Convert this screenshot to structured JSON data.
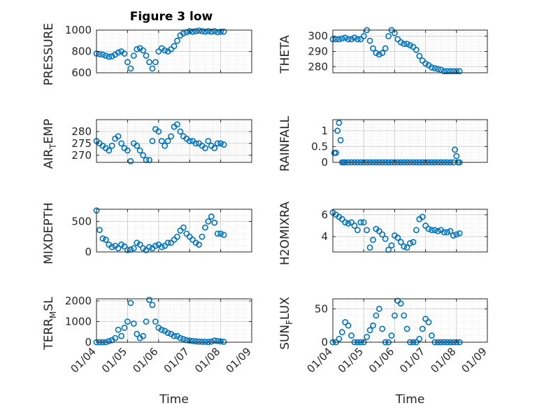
{
  "figure": {
    "title": "Figure 3 low"
  },
  "chart_data": [
    {
      "type": "scatter",
      "title": "Figure 3 low",
      "ylabel": "PRESSURE",
      "xlabel": "",
      "ylim": [
        600,
        1000
      ],
      "yticks": [
        "600",
        "800",
        "1000"
      ],
      "xlim": [
        "01/04",
        "01/09"
      ],
      "xticks": [],
      "grid": true,
      "color": "#0072BD",
      "series": [
        {
          "x": [
            4.0,
            4.1,
            4.2,
            4.3,
            4.4,
            4.5,
            4.6,
            4.7,
            4.8,
            4.9,
            5.0,
            5.1,
            5.2,
            5.3,
            5.4,
            5.5,
            5.6,
            5.7,
            5.8,
            5.9,
            6.0,
            6.1,
            6.2,
            6.3,
            6.4,
            6.5,
            6.6,
            6.7,
            6.8,
            6.9,
            7.0,
            7.1,
            7.2,
            7.3,
            7.4,
            7.5,
            7.6,
            7.7,
            7.8,
            7.9,
            8.0,
            8.1
          ],
          "y": [
            780,
            775,
            770,
            760,
            750,
            755,
            770,
            790,
            800,
            780,
            700,
            640,
            760,
            820,
            830,
            810,
            760,
            700,
            640,
            700,
            800,
            830,
            810,
            800,
            820,
            850,
            900,
            950,
            970,
            980,
            990,
            985,
            990,
            995,
            990,
            985,
            990,
            985,
            990,
            980,
            985,
            985
          ]
        }
      ]
    },
    {
      "type": "scatter",
      "ylabel": "THETA",
      "xlabel": "",
      "ylim": [
        276,
        304
      ],
      "yticks": [
        "280",
        "290",
        "300"
      ],
      "xlim": [
        "01/04",
        "01/09"
      ],
      "xticks": [],
      "grid": true,
      "color": "#0072BD",
      "series": [
        {
          "x": [
            4.0,
            4.1,
            4.2,
            4.3,
            4.4,
            4.5,
            4.6,
            4.7,
            4.8,
            4.9,
            5.0,
            5.1,
            5.2,
            5.3,
            5.4,
            5.5,
            5.6,
            5.7,
            5.8,
            5.9,
            6.0,
            6.1,
            6.2,
            6.3,
            6.4,
            6.5,
            6.6,
            6.7,
            6.8,
            6.9,
            7.0,
            7.1,
            7.2,
            7.3,
            7.4,
            7.5,
            7.6,
            7.7,
            7.8,
            7.9,
            8.0,
            8.1
          ],
          "y": [
            298,
            298,
            298,
            298.5,
            299,
            298,
            298,
            299,
            298,
            298,
            300,
            304,
            297,
            292,
            289,
            288,
            289,
            292,
            300,
            304,
            302,
            298,
            296,
            295,
            295,
            294,
            293,
            291,
            287,
            284,
            282,
            281,
            279.5,
            279,
            278.5,
            278,
            277,
            277,
            277,
            277,
            277,
            277
          ]
        }
      ]
    },
    {
      "type": "scatter",
      "ylabel": "AIR_TEMP",
      "xlabel": "",
      "ylim": [
        267,
        285
      ],
      "yticks": [
        "270",
        "275",
        "280"
      ],
      "xlim": [
        "01/04",
        "01/09"
      ],
      "xticks": [],
      "grid": true,
      "color": "#0072BD",
      "series": [
        {
          "x": [
            4.0,
            4.1,
            4.2,
            4.3,
            4.4,
            4.5,
            4.6,
            4.7,
            4.8,
            4.9,
            5.0,
            5.1,
            5.2,
            5.3,
            5.4,
            5.5,
            5.6,
            5.7,
            5.8,
            5.9,
            6.0,
            6.1,
            6.2,
            6.3,
            6.4,
            6.5,
            6.6,
            6.7,
            6.8,
            6.9,
            7.0,
            7.1,
            7.2,
            7.3,
            7.4,
            7.5,
            7.6,
            7.7,
            7.8,
            7.9,
            8.0,
            8.1
          ],
          "y": [
            276,
            275,
            274,
            273,
            272,
            274,
            277,
            278,
            275,
            273,
            272,
            267.5,
            275,
            274,
            272,
            270,
            268,
            268,
            276,
            281,
            280,
            276,
            274,
            276,
            278,
            282,
            283,
            280,
            278,
            277,
            276,
            276,
            275,
            275,
            274,
            273,
            276,
            274,
            273,
            275,
            275,
            274.5
          ]
        }
      ]
    },
    {
      "type": "scatter",
      "ylabel": "RAINFALL",
      "xlabel": "",
      "ylim": [
        0,
        1.35
      ],
      "yticks": [
        "0",
        "0.5",
        "1"
      ],
      "xlim": [
        "01/04",
        "01/09"
      ],
      "xticks": [],
      "grid": true,
      "color": "#0072BD",
      "series": [
        {
          "x": [
            4.05,
            4.1,
            4.15,
            4.2,
            4.25,
            4.3,
            4.35,
            4.4,
            4.5,
            4.6,
            4.7,
            4.8,
            4.9,
            5.0,
            5.1,
            5.2,
            5.3,
            5.4,
            5.5,
            5.6,
            5.7,
            5.8,
            5.9,
            6.0,
            6.1,
            6.2,
            6.3,
            6.4,
            6.5,
            6.6,
            6.7,
            6.8,
            6.9,
            7.0,
            7.1,
            7.2,
            7.3,
            7.4,
            7.5,
            7.6,
            7.7,
            7.8,
            7.9,
            7.95,
            8.0,
            8.05,
            8.1
          ],
          "y": [
            0.3,
            0.3,
            1.0,
            1.25,
            0.7,
            0,
            0,
            0,
            0,
            0,
            0,
            0,
            0,
            0,
            0,
            0,
            0,
            0,
            0,
            0,
            0,
            0,
            0,
            0,
            0,
            0,
            0,
            0,
            0,
            0,
            0,
            0,
            0,
            0,
            0,
            0,
            0,
            0,
            0,
            0,
            0,
            0,
            0,
            0.4,
            0.2,
            0,
            0
          ]
        }
      ]
    },
    {
      "type": "scatter",
      "ylabel": "MIXDEPTH",
      "xlabel": "",
      "ylim": [
        0,
        700
      ],
      "yticks": [
        "0",
        "500"
      ],
      "xlim": [
        "01/04",
        "01/09"
      ],
      "xticks": [],
      "grid": true,
      "color": "#0072BD",
      "series": [
        {
          "x": [
            4.0,
            4.1,
            4.2,
            4.3,
            4.4,
            4.5,
            4.6,
            4.7,
            4.8,
            4.9,
            5.0,
            5.1,
            5.2,
            5.3,
            5.4,
            5.5,
            5.6,
            5.7,
            5.8,
            5.9,
            6.0,
            6.1,
            6.2,
            6.3,
            6.4,
            6.5,
            6.6,
            6.7,
            6.8,
            6.9,
            7.0,
            7.1,
            7.2,
            7.3,
            7.4,
            7.5,
            7.6,
            7.7,
            7.8,
            7.9,
            8.0,
            8.1
          ],
          "y": [
            680,
            360,
            220,
            200,
            120,
            80,
            100,
            60,
            120,
            90,
            30,
            40,
            60,
            150,
            120,
            60,
            30,
            80,
            60,
            100,
            120,
            80,
            100,
            150,
            150,
            200,
            250,
            350,
            400,
            300,
            250,
            200,
            150,
            120,
            250,
            400,
            500,
            580,
            480,
            300,
            300,
            280
          ]
        }
      ]
    },
    {
      "type": "scatter",
      "ylabel": "H2OMIXRA",
      "xlabel": "",
      "ylim": [
        2.6,
        6.5
      ],
      "yticks": [
        "4",
        "6"
      ],
      "xlim": [
        "01/04",
        "01/09"
      ],
      "xticks": [],
      "grid": true,
      "color": "#0072BD",
      "series": [
        {
          "x": [
            4.0,
            4.1,
            4.2,
            4.3,
            4.4,
            4.5,
            4.6,
            4.7,
            4.8,
            4.9,
            5.0,
            5.1,
            5.2,
            5.3,
            5.4,
            5.5,
            5.6,
            5.7,
            5.8,
            5.9,
            6.0,
            6.1,
            6.2,
            6.3,
            6.4,
            6.5,
            6.6,
            6.7,
            6.8,
            6.9,
            7.0,
            7.1,
            7.2,
            7.3,
            7.4,
            7.5,
            7.6,
            7.7,
            7.8,
            7.9,
            8.0,
            8.1
          ],
          "y": [
            6.2,
            6.0,
            5.8,
            5.6,
            5.3,
            5.2,
            5.3,
            5.0,
            4.6,
            5.3,
            5.3,
            4.6,
            3.0,
            3.7,
            4.7,
            4.5,
            4.2,
            3.8,
            2.8,
            3.2,
            4.1,
            3.9,
            3.5,
            3.1,
            3.0,
            3.4,
            3.5,
            4.6,
            5.6,
            5.8,
            5.0,
            4.7,
            4.6,
            4.6,
            4.5,
            4.6,
            4.4,
            4.4,
            4.5,
            4.1,
            4.2,
            4.3
          ]
        }
      ]
    },
    {
      "type": "scatter",
      "ylabel": "TERR_MSL",
      "xlabel": "Time",
      "ylim": [
        0,
        2100
      ],
      "yticks": [
        "0",
        "1000",
        "2000"
      ],
      "xlim": [
        "01/04",
        "01/09"
      ],
      "xticks": [
        "01/04",
        "01/05",
        "01/06",
        "01/07",
        "01/08",
        "01/09"
      ],
      "grid": true,
      "color": "#0072BD",
      "series": [
        {
          "x": [
            4.0,
            4.1,
            4.2,
            4.3,
            4.4,
            4.5,
            4.6,
            4.7,
            4.8,
            4.9,
            5.0,
            5.1,
            5.2,
            5.3,
            5.4,
            5.5,
            5.6,
            5.7,
            5.8,
            5.9,
            6.0,
            6.1,
            6.2,
            6.3,
            6.4,
            6.5,
            6.6,
            6.7,
            6.8,
            6.9,
            7.0,
            7.1,
            7.2,
            7.3,
            7.4,
            7.5,
            7.6,
            7.7,
            7.8,
            7.9,
            8.0,
            8.1
          ],
          "y": [
            0,
            0,
            0,
            0,
            50,
            100,
            200,
            600,
            300,
            700,
            1000,
            1900,
            900,
            400,
            200,
            300,
            1000,
            2050,
            1800,
            1000,
            700,
            600,
            550,
            450,
            400,
            300,
            300,
            200,
            150,
            100,
            80,
            60,
            40,
            30,
            20,
            20,
            10,
            30,
            80,
            60,
            40,
            20
          ]
        }
      ]
    },
    {
      "type": "scatter",
      "ylabel": "SUN_FLUX",
      "xlabel": "Time",
      "ylim": [
        0,
        65
      ],
      "yticks": [
        "0",
        "50"
      ],
      "xlim": [
        "01/04",
        "01/09"
      ],
      "xticks": [
        "01/04",
        "01/05",
        "01/06",
        "01/07",
        "01/08",
        "01/09"
      ],
      "grid": true,
      "color": "#0072BD",
      "series": [
        {
          "x": [
            4.0,
            4.1,
            4.2,
            4.3,
            4.4,
            4.5,
            4.6,
            4.7,
            4.8,
            4.9,
            5.0,
            5.1,
            5.2,
            5.3,
            5.4,
            5.5,
            5.6,
            5.7,
            5.8,
            5.9,
            6.0,
            6.1,
            6.2,
            6.3,
            6.4,
            6.5,
            6.6,
            6.7,
            6.8,
            6.9,
            7.0,
            7.1,
            7.2,
            7.3,
            7.4,
            7.5,
            7.6,
            7.7,
            7.8,
            7.9,
            8.0,
            8.1
          ],
          "y": [
            0,
            0,
            5,
            15,
            30,
            25,
            10,
            0,
            0,
            0,
            0,
            8,
            18,
            25,
            40,
            50,
            20,
            0,
            0,
            10,
            40,
            62,
            58,
            40,
            20,
            0,
            0,
            0,
            5,
            20,
            35,
            30,
            10,
            0,
            0,
            0,
            0,
            0,
            0,
            0,
            0,
            0
          ]
        }
      ]
    }
  ]
}
